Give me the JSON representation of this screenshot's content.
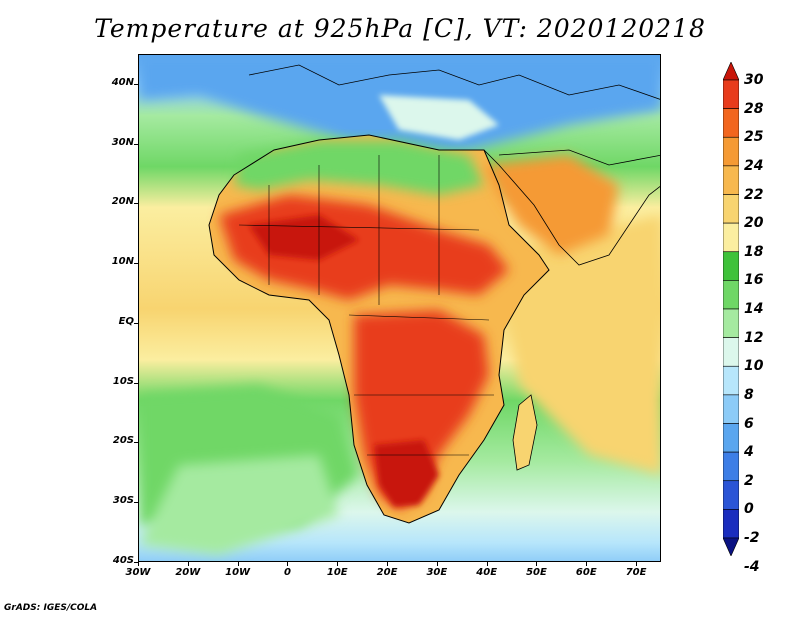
{
  "title": "Temperature at 925hPa [C], VT: 2020120218",
  "credit": "GrADS: IGES/COLA",
  "map": {
    "projection": "latlon",
    "lon_range": [
      -30,
      75
    ],
    "lat_range": [
      -40,
      45
    ],
    "lat_ticks": [
      {
        "value": 40,
        "label": "40N"
      },
      {
        "value": 30,
        "label": "30N"
      },
      {
        "value": 20,
        "label": "20N"
      },
      {
        "value": 10,
        "label": "10N"
      },
      {
        "value": 0,
        "label": "EQ"
      },
      {
        "value": -10,
        "label": "10S"
      },
      {
        "value": -20,
        "label": "20S"
      },
      {
        "value": -30,
        "label": "30S"
      },
      {
        "value": -40,
        "label": "40S"
      }
    ],
    "lon_ticks": [
      {
        "value": -30,
        "label": "30W"
      },
      {
        "value": -20,
        "label": "20W"
      },
      {
        "value": -10,
        "label": "10W"
      },
      {
        "value": 0,
        "label": "0"
      },
      {
        "value": 10,
        "label": "10E"
      },
      {
        "value": 20,
        "label": "20E"
      },
      {
        "value": 30,
        "label": "30E"
      },
      {
        "value": 40,
        "label": "40E"
      },
      {
        "value": 50,
        "label": "50E"
      },
      {
        "value": 60,
        "label": "60E"
      },
      {
        "value": 70,
        "label": "70E"
      }
    ]
  },
  "colorbar": {
    "levels": [
      "30",
      "28",
      "25",
      "24",
      "22",
      "20",
      "18",
      "16",
      "14",
      "12",
      "10",
      "8",
      "6",
      "4",
      "2",
      "0",
      "-2",
      "-4"
    ],
    "colors": [
      "#c8160a",
      "#e83c1c",
      "#f2661e",
      "#f59a34",
      "#f7b84e",
      "#f8d470",
      "#fbeea0",
      "#3fc23a",
      "#6fd766",
      "#a5eaa0",
      "#dcf7ec",
      "#b7e6fb",
      "#8ccbf7",
      "#5aa6ef",
      "#3d7ee6",
      "#2b55d6",
      "#1a2dbe",
      "#0a1282"
    ]
  }
}
